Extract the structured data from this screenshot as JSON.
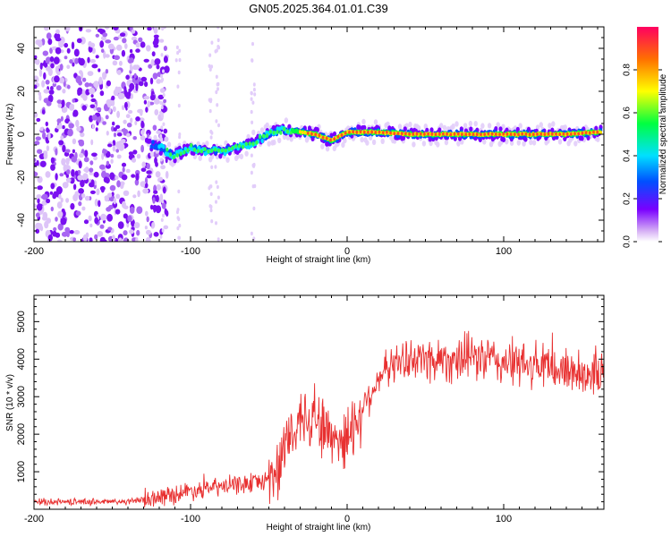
{
  "chart_data": [
    {
      "type": "heatmap",
      "title": "GN05.2025.364.01.01.C39",
      "xlabel": "Height of straight line (km)",
      "ylabel": "Frequency (Hz)",
      "xlim": [
        -200,
        164
      ],
      "ylim": [
        -50,
        50
      ],
      "xticks": [
        -200,
        -100,
        0,
        100
      ],
      "yticks": [
        -40,
        -20,
        0,
        20,
        40
      ],
      "colorbar": {
        "label": "Normalized spectral amplitude",
        "range": [
          0,
          1
        ],
        "ticks": [
          "0.0",
          "0.2",
          "0.4",
          "0.6",
          "0.8"
        ],
        "colormap": [
          "#c8a0f0",
          "#7a00ff",
          "#0050ff",
          "#00e0ff",
          "#00ff40",
          "#ffff00",
          "#ff7000",
          "#ff0050"
        ]
      },
      "ridge": {
        "x": [
          -127,
          -120,
          -115,
          -110,
          -100,
          -90,
          -80,
          -70,
          -60,
          -50,
          -40,
          -30,
          -20,
          -10,
          0,
          20,
          40,
          60,
          80,
          100,
          120,
          140,
          160
        ],
        "y": [
          -4,
          -6,
          -8,
          -10,
          -6,
          -8,
          -8,
          -6,
          -4,
          0,
          2,
          1,
          0,
          -3,
          1,
          1,
          0,
          0,
          0,
          0,
          0,
          0,
          1
        ]
      },
      "noise_region": {
        "x": [
          -200,
          -125
        ]
      }
    },
    {
      "type": "line",
      "title": "",
      "xlabel": "Height of straight line (km)",
      "ylabel": "SNR (10 * v/v)",
      "xlim": [
        -200,
        164
      ],
      "ylim": [
        0,
        5700
      ],
      "xticks": [
        -200,
        -100,
        0,
        100
      ],
      "yticks": [
        1000,
        2000,
        3000,
        4000,
        5000
      ],
      "color": "#e83030",
      "series": [
        {
          "name": "SNR",
          "x": [
            -200,
            -180,
            -160,
            -140,
            -130,
            -120,
            -110,
            -100,
            -90,
            -80,
            -70,
            -60,
            -50,
            -45,
            -40,
            -35,
            -30,
            -25,
            -20,
            -15,
            -10,
            -5,
            0,
            5,
            10,
            15,
            20,
            25,
            30,
            40,
            50,
            60,
            70,
            80,
            90,
            100,
            110,
            120,
            130,
            140,
            150,
            164
          ],
          "values": [
            200,
            200,
            200,
            200,
            250,
            320,
            400,
            500,
            550,
            600,
            650,
            700,
            800,
            1100,
            1500,
            2000,
            2400,
            2600,
            2500,
            2100,
            2000,
            1900,
            1900,
            2300,
            2700,
            3100,
            3500,
            3700,
            3900,
            4000,
            4000,
            4000,
            4000,
            4050,
            4000,
            3900,
            3850,
            3800,
            3750,
            3700,
            3650,
            3600
          ]
        }
      ]
    }
  ]
}
